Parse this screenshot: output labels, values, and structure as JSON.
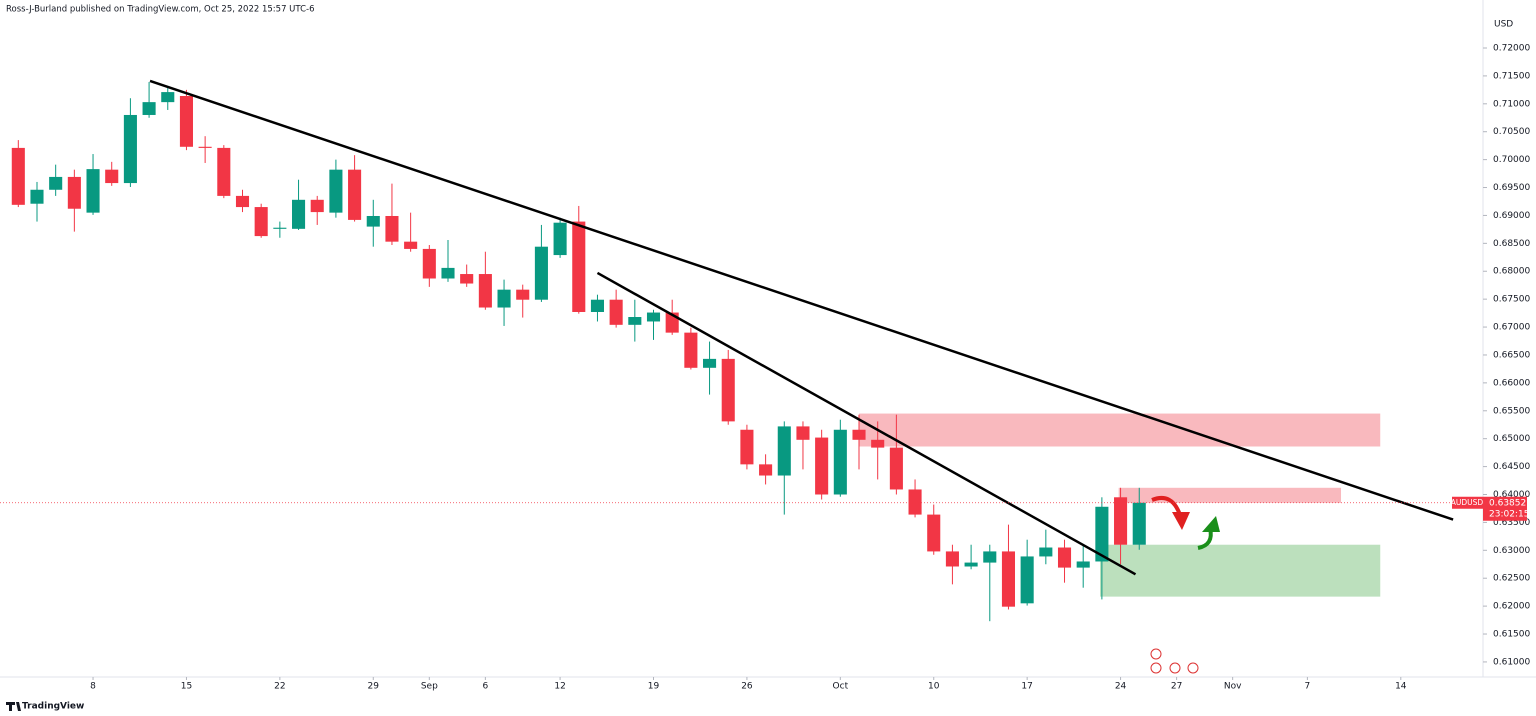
{
  "chart_data": {
    "type": "candlestick",
    "header": "Ross-J-Burland published on TradingView.com, Oct 25, 2022 15:57 UTC-6",
    "currency": "USD",
    "symbol": "AUDUSD",
    "last": 0.63852,
    "countdown": "23:02:15",
    "branding": "TradingView",
    "up_color": "#089981",
    "down_color": "#f23645",
    "x": [
      0,
      1,
      2,
      3,
      4,
      5,
      6,
      7,
      8,
      9,
      10,
      11,
      12,
      13,
      14,
      15,
      16,
      17,
      18,
      19,
      20,
      21,
      22,
      23,
      24,
      25,
      26,
      27,
      28,
      29,
      30,
      31,
      32,
      33,
      34,
      35,
      36,
      37,
      38,
      39,
      40,
      41,
      42,
      43,
      44,
      45,
      46,
      47,
      48,
      49,
      50,
      51,
      52,
      53,
      54,
      55,
      56,
      57,
      58,
      59,
      60
    ],
    "open": [
      0.7021,
      0.6921,
      0.6946,
      0.6969,
      0.6905,
      0.6982,
      0.6958,
      0.708,
      0.7103,
      0.7114,
      0.7023,
      0.7021,
      0.6935,
      0.6915,
      0.6876,
      0.6876,
      0.6928,
      0.6905,
      0.6982,
      0.688,
      0.6899,
      0.6853,
      0.684,
      0.6787,
      0.6795,
      0.6795,
      0.6735,
      0.6767,
      0.6749,
      0.6829,
      0.6889,
      0.6727,
      0.6749,
      0.6704,
      0.671,
      0.6726,
      0.669,
      0.6627,
      0.6643,
      0.6516,
      0.6454,
      0.6434,
      0.6522,
      0.6502,
      0.64,
      0.6516,
      0.6498,
      0.6484,
      0.6409,
      0.6364,
      0.6298,
      0.6271,
      0.6278,
      0.6298,
      0.6205,
      0.6289,
      0.6305,
      0.6269,
      0.628,
      0.6395,
      0.631
    ],
    "high": [
      0.7035,
      0.696,
      0.6991,
      0.6982,
      0.701,
      0.6996,
      0.711,
      0.7139,
      0.713,
      0.7125,
      0.7042,
      0.7026,
      0.6946,
      0.6921,
      0.6889,
      0.6964,
      0.6935,
      0.7,
      0.7008,
      0.6928,
      0.6957,
      0.6905,
      0.6847,
      0.6856,
      0.6812,
      0.6835,
      0.6785,
      0.6776,
      0.6883,
      0.6896,
      0.6917,
      0.6758,
      0.6767,
      0.6749,
      0.6731,
      0.6749,
      0.6699,
      0.6674,
      0.6659,
      0.6525,
      0.6472,
      0.6531,
      0.6531,
      0.6516,
      0.6534,
      0.6543,
      0.6531,
      0.6543,
      0.6427,
      0.6382,
      0.631,
      0.631,
      0.631,
      0.6346,
      0.6319,
      0.6337,
      0.6319,
      0.631,
      0.6395,
      0.6412,
      0.6412
    ],
    "low": [
      0.6915,
      0.6889,
      0.6935,
      0.6871,
      0.6901,
      0.6953,
      0.6951,
      0.7075,
      0.7089,
      0.7017,
      0.6994,
      0.6931,
      0.6906,
      0.686,
      0.686,
      0.6874,
      0.6883,
      0.6896,
      0.6889,
      0.6844,
      0.6847,
      0.6835,
      0.6772,
      0.6781,
      0.6772,
      0.6731,
      0.6702,
      0.6717,
      0.6745,
      0.6824,
      0.6724,
      0.671,
      0.6699,
      0.6674,
      0.6677,
      0.6686,
      0.6624,
      0.6579,
      0.6525,
      0.6445,
      0.6418,
      0.6364,
      0.6445,
      0.6391,
      0.6396,
      0.6445,
      0.6427,
      0.64,
      0.6359,
      0.6292,
      0.6239,
      0.6266,
      0.6173,
      0.6194,
      0.6201,
      0.6275,
      0.6242,
      0.6233,
      0.6212,
      0.6275,
      0.6301
    ],
    "close": [
      0.6919,
      0.6946,
      0.6969,
      0.6912,
      0.6983,
      0.6958,
      0.708,
      0.7103,
      0.7121,
      0.7023,
      0.7021,
      0.6935,
      0.6915,
      0.6863,
      0.6878,
      0.6928,
      0.6906,
      0.6982,
      0.6892,
      0.6899,
      0.6853,
      0.684,
      0.6787,
      0.6806,
      0.6778,
      0.6735,
      0.6767,
      0.6749,
      0.6844,
      0.6887,
      0.6727,
      0.6749,
      0.6704,
      0.6718,
      0.6726,
      0.669,
      0.6627,
      0.6643,
      0.6531,
      0.6454,
      0.6434,
      0.6522,
      0.6498,
      0.64,
      0.6516,
      0.6498,
      0.6484,
      0.6409,
      0.6364,
      0.6298,
      0.6271,
      0.6278,
      0.6298,
      0.6199,
      0.6289,
      0.6305,
      0.6269,
      0.628,
      0.6378,
      0.631,
      0.63852
    ],
    "xlim": [
      -0.98,
      78.4
    ],
    "ylim": [
      0.6073,
      0.7286
    ],
    "xticks": [
      {
        "value": 4,
        "label": "8"
      },
      {
        "value": 9,
        "label": "15"
      },
      {
        "value": 14,
        "label": "22"
      },
      {
        "value": 19,
        "label": "29"
      },
      {
        "value": 22,
        "label": "Sep"
      },
      {
        "value": 25,
        "label": "6"
      },
      {
        "value": 29,
        "label": "12"
      },
      {
        "value": 34,
        "label": "19"
      },
      {
        "value": 39,
        "label": "26"
      },
      {
        "value": 44,
        "label": "Oct"
      },
      {
        "value": 49,
        "label": "10"
      },
      {
        "value": 54,
        "label": "17"
      },
      {
        "value": 59,
        "label": "24"
      },
      {
        "value": 62,
        "label": "27"
      },
      {
        "value": 65,
        "label": "Nov"
      },
      {
        "value": 69,
        "label": "7"
      },
      {
        "value": 74,
        "label": "14"
      }
    ],
    "yticks": [
      {
        "value": 0.61,
        "label": "0.61000"
      },
      {
        "value": 0.615,
        "label": "0.61500"
      },
      {
        "value": 0.62,
        "label": "0.62000"
      },
      {
        "value": 0.625,
        "label": "0.62500"
      },
      {
        "value": 0.63,
        "label": "0.63000"
      },
      {
        "value": 0.635,
        "label": "0.63500"
      },
      {
        "value": 0.64,
        "label": "0.64000"
      },
      {
        "value": 0.645,
        "label": "0.64500"
      },
      {
        "value": 0.65,
        "label": "0.65000"
      },
      {
        "value": 0.655,
        "label": "0.65500"
      },
      {
        "value": 0.66,
        "label": "0.66000"
      },
      {
        "value": 0.665,
        "label": "0.66500"
      },
      {
        "value": 0.67,
        "label": "0.67000"
      },
      {
        "value": 0.675,
        "label": "0.67500"
      },
      {
        "value": 0.68,
        "label": "0.68000"
      },
      {
        "value": 0.685,
        "label": "0.68500"
      },
      {
        "value": 0.69,
        "label": "0.69000"
      },
      {
        "value": 0.695,
        "label": "0.69500"
      },
      {
        "value": 0.7,
        "label": "0.70000"
      },
      {
        "value": 0.705,
        "label": "0.70500"
      },
      {
        "value": 0.71,
        "label": "0.71000"
      },
      {
        "value": 0.715,
        "label": "0.71500"
      },
      {
        "value": 0.72,
        "label": "0.72000"
      }
    ],
    "grid": false,
    "trendlines": [
      {
        "x": [
          7.05,
          76.8
        ],
        "y": [
          0.7141,
          0.6355
        ],
        "color": "#000000"
      },
      {
        "x": [
          31,
          59.8
        ],
        "y": [
          0.6797,
          0.6257
        ],
        "color": "#000000"
      }
    ],
    "zones": [
      {
        "x": [
          45,
          72.9
        ],
        "y": [
          0.6545,
          0.6486
        ],
        "color": "#f7a1a8"
      },
      {
        "x": [
          58.9,
          70.8
        ],
        "y": [
          0.6412,
          0.6385
        ],
        "color": "#f7a1a8"
      },
      {
        "x": [
          57.9,
          72.9
        ],
        "y": [
          0.631,
          0.6217
        ],
        "color": "#a5d6a7"
      }
    ]
  }
}
